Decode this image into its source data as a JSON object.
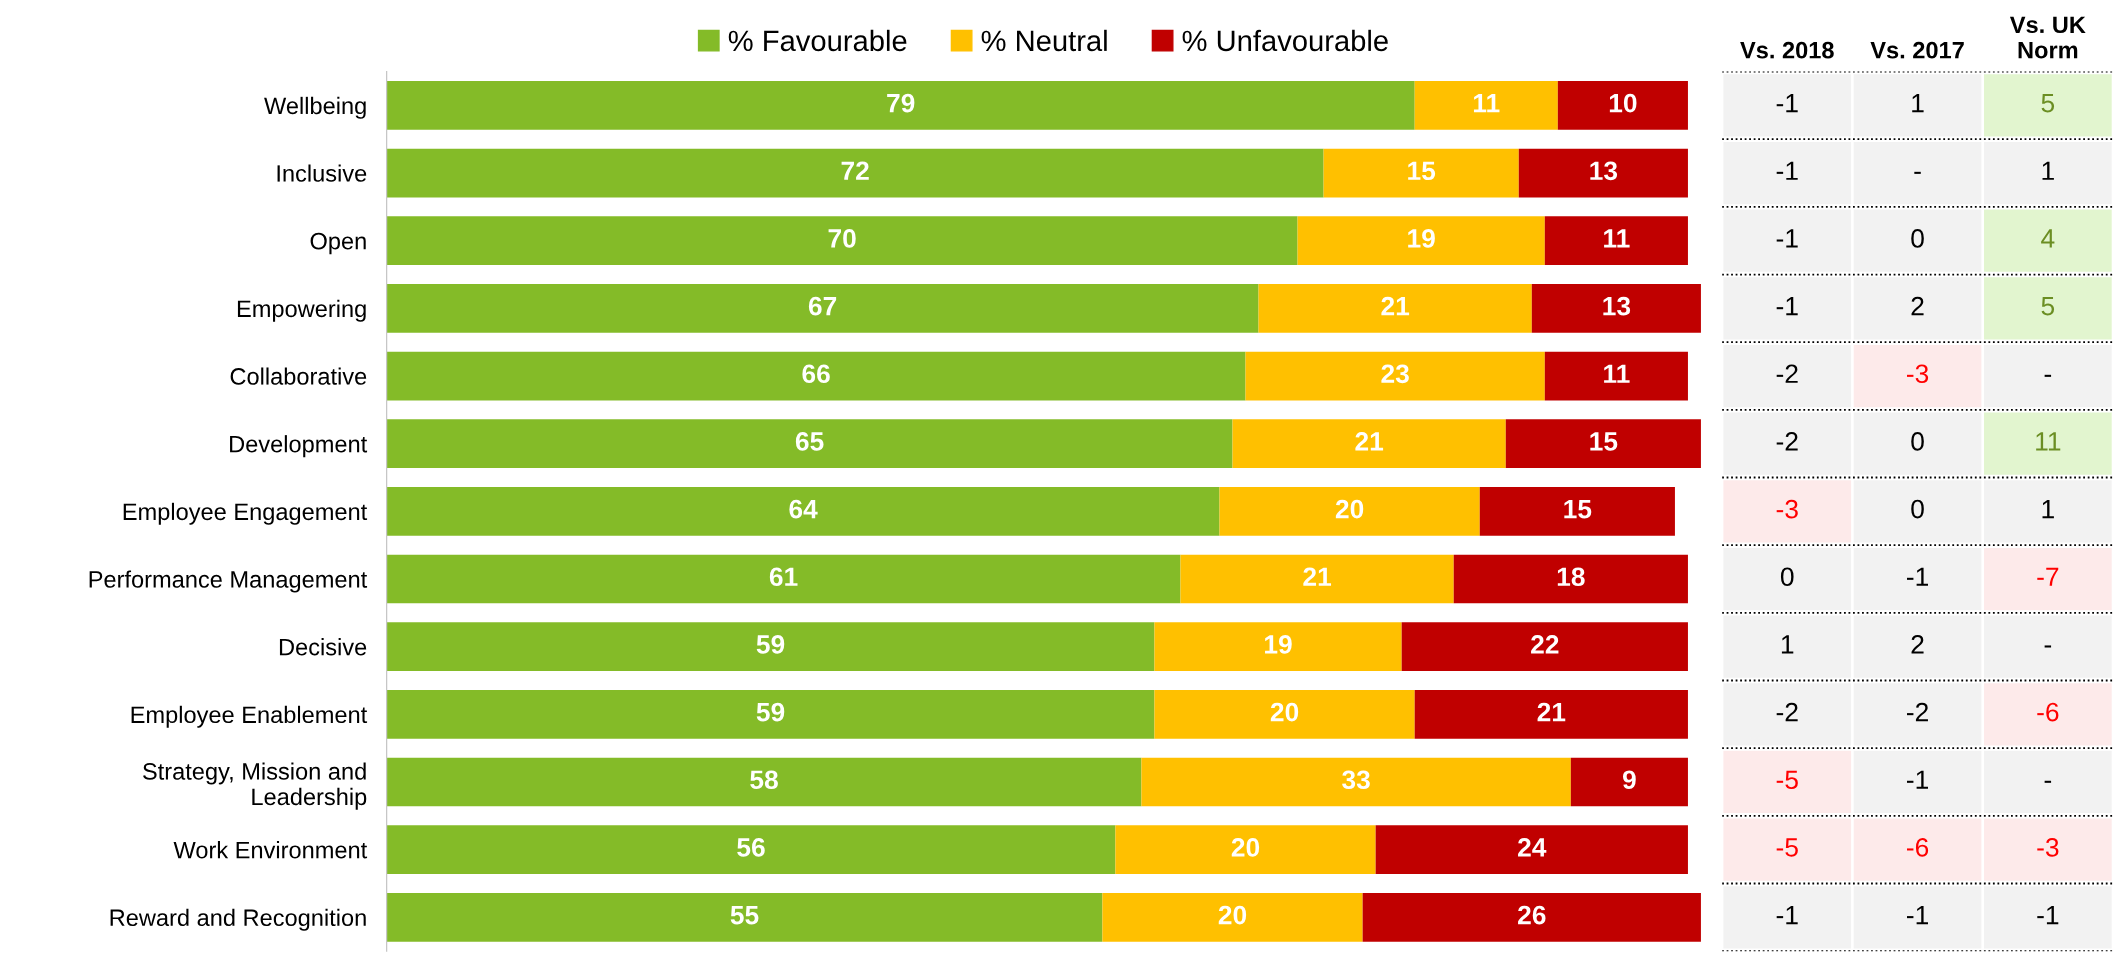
{
  "chart_data": [
    {
      "type": "bar",
      "orientation": "horizontal",
      "stacked": true,
      "data_labels": true,
      "legend": "top",
      "grid": false,
      "categories": [
        "Wellbeing",
        "Inclusive",
        "Open",
        "Empowering",
        "Collaborative",
        "Development",
        "Employee Engagement",
        "Performance Management",
        "Decisive",
        "Employee Enablement",
        "Strategy, Mission and\nLeadership",
        "Work Environment",
        "Reward and Recognition"
      ],
      "series": [
        {
          "name": "% Favourable",
          "color": "#84bb28",
          "values": [
            79,
            72,
            70,
            67,
            66,
            65,
            64,
            61,
            59,
            59,
            58,
            56,
            55
          ]
        },
        {
          "name": "% Neutral",
          "color": "#ffc000",
          "values": [
            11,
            15,
            19,
            21,
            23,
            21,
            20,
            21,
            19,
            20,
            33,
            20,
            20
          ]
        },
        {
          "name": "% Unfavourable",
          "color": "#c00000",
          "values": [
            10,
            13,
            11,
            13,
            11,
            15,
            15,
            18,
            22,
            21,
            9,
            24,
            26
          ]
        }
      ]
    },
    {
      "type": "heatmap",
      "categories": [
        "Vs. 2018",
        "Vs. 2017",
        "Vs. UK\nNorm"
      ],
      "y_categories": [
        null,
        null,
        null,
        null,
        null,
        null,
        null,
        null,
        null,
        null,
        null,
        null,
        null
      ],
      "cells": [
        [
          -1,
          1,
          5
        ],
        [
          -1,
          null,
          1
        ],
        [
          -1,
          0,
          4
        ],
        [
          -1,
          2,
          5
        ],
        [
          -2,
          -3,
          null
        ],
        [
          -2,
          0,
          11
        ],
        [
          -3,
          0,
          1
        ],
        [
          0,
          -1,
          -7
        ],
        [
          1,
          2,
          null
        ],
        [
          -2,
          -2,
          -6
        ],
        [
          -5,
          -1,
          null
        ],
        [
          -5,
          -6,
          -3
        ],
        [
          -1,
          -1,
          -1
        ]
      ],
      "cell_labels": [
        [
          "-1",
          "1",
          "5"
        ],
        [
          "-1",
          "-",
          "1"
        ],
        [
          "-1",
          "0",
          "4"
        ],
        [
          "-1",
          "2",
          "5"
        ],
        [
          "-2",
          "-3",
          "-"
        ],
        [
          "-2",
          "0",
          "11"
        ],
        [
          "-3",
          "0",
          "1"
        ],
        [
          "0",
          "-1",
          "-7"
        ],
        [
          "1",
          "2",
          "-"
        ],
        [
          "-2",
          "-2",
          "-6"
        ],
        [
          "-5",
          "-1",
          "-"
        ],
        [
          "-5",
          "-6",
          "-3"
        ],
        [
          "-1",
          "-1",
          "-1"
        ]
      ]
    }
  ]
}
